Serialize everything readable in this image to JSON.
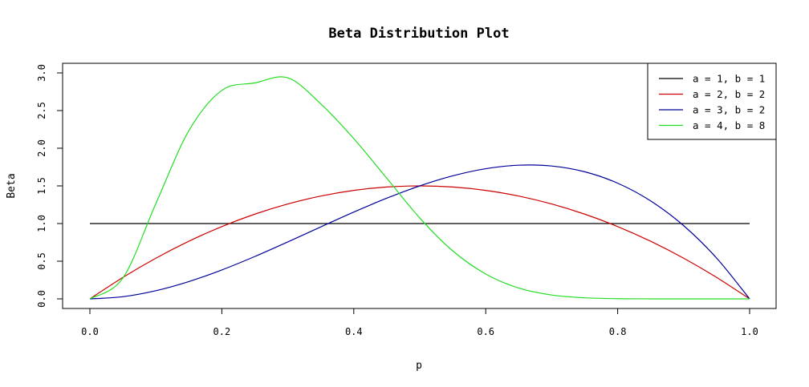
{
  "chart_data": {
    "type": "line",
    "title": "Beta Distribution Plot",
    "xlabel": "p",
    "ylabel": "Beta",
    "xlim": [
      0,
      1
    ],
    "ylim": [
      0,
      3.0
    ],
    "x_ticks": [
      "0.0",
      "0.2",
      "0.4",
      "0.6",
      "0.8",
      "1.0"
    ],
    "y_ticks": [
      "0.0",
      "0.5",
      "1.0",
      "1.5",
      "2.0",
      "2.5",
      "3.0"
    ],
    "grid": false,
    "legend_position": "top-right",
    "x": [
      0,
      0.05,
      0.1,
      0.15,
      0.2,
      0.25,
      0.3,
      0.35,
      0.4,
      0.45,
      0.5,
      0.55,
      0.6,
      0.65,
      0.7,
      0.75,
      0.8,
      0.85,
      0.9,
      0.95,
      1.0
    ],
    "series": [
      {
        "name": "a = 1, b = 1",
        "color": "#000000",
        "values": [
          1,
          1,
          1,
          1,
          1,
          1,
          1,
          1,
          1,
          1,
          1,
          1,
          1,
          1,
          1,
          1,
          1,
          1,
          1,
          1,
          1
        ]
      },
      {
        "name": "a = 2, b = 2",
        "color": "#cc0000",
        "values": [
          0,
          0.285,
          0.54,
          0.765,
          0.96,
          1.125,
          1.26,
          1.365,
          1.44,
          1.485,
          1.5,
          1.485,
          1.44,
          1.365,
          1.26,
          1.125,
          0.96,
          0.765,
          0.54,
          0.285,
          0
        ]
      },
      {
        "name": "a = 3, b = 2",
        "color": "#000099",
        "values": [
          0,
          0.0285,
          0.108,
          0.2295,
          0.384,
          0.5625,
          0.756,
          0.9555,
          1.152,
          1.3365,
          1.5,
          1.6335,
          1.728,
          1.7745,
          1.764,
          1.6875,
          1.536,
          1.3005,
          0.972,
          0.5415,
          0
        ]
      },
      {
        "name": "a = 4, b = 8",
        "color": "#22dd22",
        "values": [
          0,
          0.276,
          1.265,
          2.233,
          2.768,
          2.867,
          2.935,
          2.589,
          2.128,
          1.602,
          1.074,
          0.637,
          0.33,
          0.144,
          0.051,
          0.0137,
          0.0025,
          0.0003,
          2e-05,
          2e-07,
          0
        ]
      }
    ]
  }
}
